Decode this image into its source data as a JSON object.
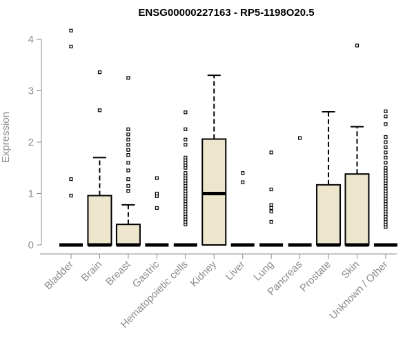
{
  "chart_data": {
    "type": "box",
    "title": "ENSG00000227163 - RP5-1198O20.5",
    "ylabel": "Expression",
    "xlabel": "",
    "ylim": [
      0,
      4.2
    ],
    "yticks": [
      0,
      1,
      2,
      3,
      4
    ],
    "box_fill": "#ede6cd",
    "categories": [
      "Bladder",
      "Brain",
      "Breast",
      "Gastric",
      "Hematopoietic cells",
      "Kidney",
      "Liver",
      "Lung",
      "Pancreas",
      "Prostate",
      "Skin",
      "Unknown / Other"
    ],
    "boxes": [
      {
        "q1": 0,
        "median": 0,
        "q3": 0,
        "whisker_low": 0,
        "whisker_high": 0,
        "outliers": [
          0.96,
          1.28,
          3.86,
          4.17
        ]
      },
      {
        "q1": 0,
        "median": 0,
        "q3": 0.96,
        "whisker_low": 0,
        "whisker_high": 1.7,
        "outliers": [
          2.62,
          3.36
        ]
      },
      {
        "q1": 0,
        "median": 0,
        "q3": 0.4,
        "whisker_low": 0,
        "whisker_high": 0.78,
        "outliers": [
          1.05,
          1.15,
          1.28,
          1.45,
          1.6,
          1.75,
          1.85,
          1.95,
          2.05,
          2.15,
          2.25,
          3.25
        ]
      },
      {
        "q1": 0,
        "median": 0,
        "q3": 0,
        "whisker_low": 0,
        "whisker_high": 0,
        "outliers": [
          0.72,
          0.95,
          1.0,
          1.3
        ]
      },
      {
        "q1": 0,
        "median": 0,
        "q3": 0,
        "whisker_low": 0,
        "whisker_high": 0,
        "outliers": [
          0.4,
          0.45,
          0.5,
          0.55,
          0.6,
          0.65,
          0.7,
          0.75,
          0.8,
          0.85,
          0.9,
          0.95,
          1.0,
          1.05,
          1.1,
          1.15,
          1.2,
          1.25,
          1.3,
          1.35,
          1.4,
          1.5,
          1.55,
          1.6,
          1.65,
          1.7,
          1.95,
          2.05,
          2.25,
          2.58
        ]
      },
      {
        "q1": 0,
        "median": 1.0,
        "q3": 2.06,
        "whisker_low": 0,
        "whisker_high": 3.3,
        "outliers": []
      },
      {
        "q1": 0,
        "median": 0,
        "q3": 0,
        "whisker_low": 0,
        "whisker_high": 0,
        "outliers": [
          1.22,
          1.4
        ]
      },
      {
        "q1": 0,
        "median": 0,
        "q3": 0,
        "whisker_low": 0,
        "whisker_high": 0,
        "outliers": [
          0.45,
          0.65,
          0.72,
          0.78,
          1.08,
          1.8
        ]
      },
      {
        "q1": 0,
        "median": 0,
        "q3": 0,
        "whisker_low": 0,
        "whisker_high": 0,
        "outliers": [
          2.08
        ]
      },
      {
        "q1": 0,
        "median": 0,
        "q3": 1.17,
        "whisker_low": 0,
        "whisker_high": 2.59,
        "outliers": []
      },
      {
        "q1": 0,
        "median": 0,
        "q3": 1.38,
        "whisker_low": 0,
        "whisker_high": 2.3,
        "outliers": [
          3.88
        ]
      },
      {
        "q1": 0,
        "median": 0,
        "q3": 0,
        "whisker_low": 0,
        "whisker_high": 0,
        "outliers": [
          0.35,
          0.4,
          0.45,
          0.5,
          0.55,
          0.6,
          0.65,
          0.7,
          0.75,
          0.8,
          0.85,
          0.9,
          0.95,
          1.0,
          1.05,
          1.1,
          1.15,
          1.2,
          1.25,
          1.3,
          1.35,
          1.4,
          1.45,
          1.5,
          1.6,
          1.7,
          1.8,
          1.9,
          2.0,
          2.1,
          2.35,
          2.5,
          2.6
        ]
      }
    ]
  }
}
